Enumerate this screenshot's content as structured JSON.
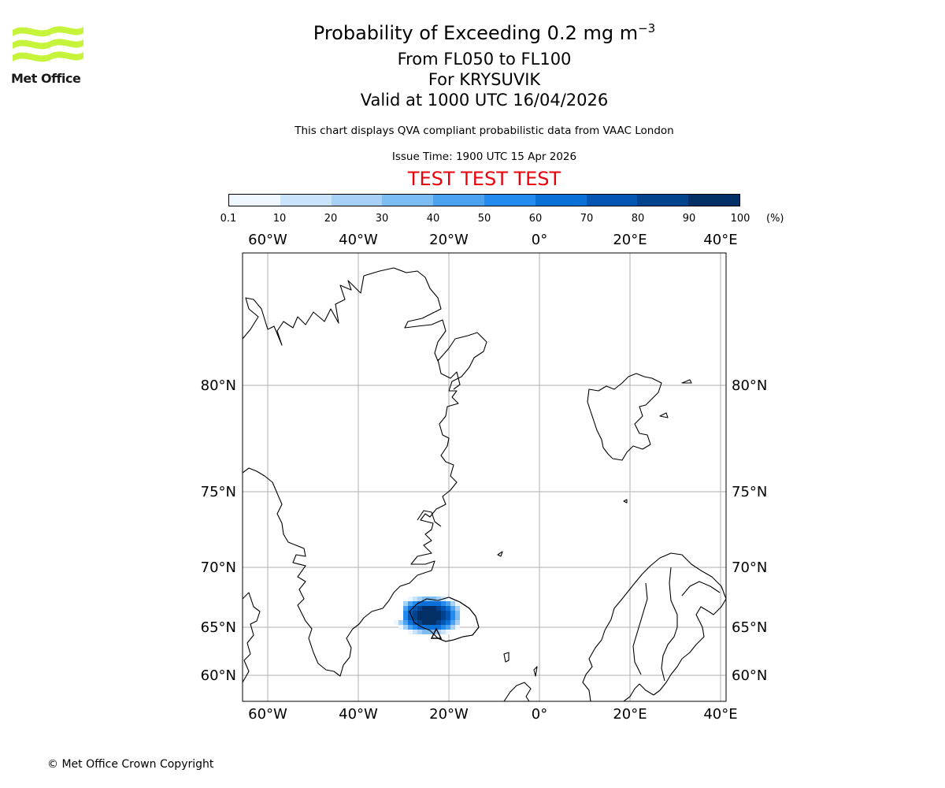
{
  "header": {
    "title": "Probability of Exceeding 0.2 mg m",
    "title_sup": "−3",
    "level_range": "From FL050 to FL100",
    "volcano": "For KRYSUVIK",
    "valid": "Valid at 1000 UTC 16/04/2026",
    "description": "This chart displays QVA compliant probabilistic data from VAAC London",
    "issue_time": "Issue Time: 1900 UTC 15 Apr 2026",
    "test_banner": "TEST TEST TEST"
  },
  "logo": {
    "text": "Met Office",
    "icon": "met-office-wave-logo",
    "color": "#c6f43a"
  },
  "colorbar": {
    "ticks": [
      "0.1",
      "10",
      "20",
      "30",
      "40",
      "50",
      "60",
      "70",
      "80",
      "90",
      "100"
    ],
    "unit": "(%)",
    "colors": [
      "#eef6ff",
      "#c9e3fa",
      "#a7d0f6",
      "#7bbcf3",
      "#4da2f0",
      "#238af0",
      "#0a6fd6",
      "#0556b3",
      "#03428c",
      "#022f66"
    ]
  },
  "map": {
    "lon_labels": [
      "60°W",
      "40°W",
      "20°W",
      "0°",
      "20°E",
      "40°E"
    ],
    "lat_labels": [
      "80°N",
      "75°N",
      "70°N",
      "65°N",
      "60°N"
    ],
    "gridline_color": "#b0b0b0"
  },
  "footer": {
    "copyright": "© Met Office Crown Copyright"
  }
}
